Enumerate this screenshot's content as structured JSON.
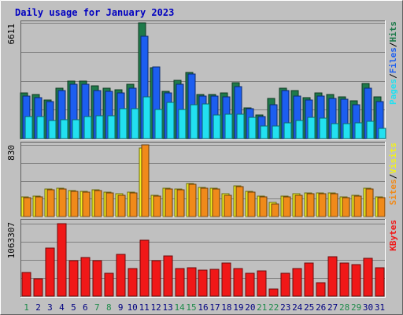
{
  "chart_data": {
    "type": "bar",
    "title": "Daily usage for January 2023",
    "x": [
      "1",
      "2",
      "3",
      "4",
      "5",
      "6",
      "7",
      "8",
      "9",
      "10",
      "11",
      "12",
      "13",
      "14",
      "15",
      "16",
      "17",
      "18",
      "19",
      "20",
      "21",
      "22",
      "23",
      "24",
      "25",
      "26",
      "27",
      "28",
      "29",
      "30",
      "31"
    ],
    "weekend_days": [
      "1",
      "7",
      "8",
      "14",
      "15",
      "21",
      "22",
      "28",
      "29"
    ],
    "panels": [
      {
        "name": "top",
        "ymax_label": "6611",
        "ymax": 6611,
        "axis_labels": [
          "Pages",
          "/",
          "Files",
          "/",
          "Hits"
        ],
        "series": [
          {
            "name": "Hits",
            "color": "#1e7a4a",
            "values": [
              2600,
              2500,
              2200,
              2900,
              3300,
              3300,
              3000,
              2900,
              2800,
              3100,
              6611,
              4050,
              2700,
              3350,
              3800,
              2500,
              2500,
              2600,
              3200,
              1750,
              1350,
              2300,
              2900,
              2750,
              2350,
              2600,
              2500,
              2400,
              2150,
              3150,
              2400
            ]
          },
          {
            "name": "Files",
            "color": "#1c5ef0",
            "values": [
              2450,
              2350,
              2100,
              2750,
              3100,
              3100,
              2750,
              2700,
              2600,
              2900,
              5850,
              4100,
              2600,
              3100,
              3700,
              2450,
              2450,
              2400,
              2950,
              1700,
              1250,
              1950,
              2750,
              2450,
              2200,
              2450,
              2300,
              2250,
              1950,
              2900,
              2100
            ]
          },
          {
            "name": "Pages",
            "color": "#22e0f0",
            "values": [
              1250,
              1250,
              1050,
              1100,
              1100,
              1250,
              1300,
              1300,
              1700,
              1700,
              2400,
              1650,
              2050,
              1650,
              1950,
              2000,
              1350,
              1400,
              1400,
              1200,
              700,
              700,
              900,
              1050,
              1200,
              1150,
              850,
              850,
              900,
              1000,
              600
            ]
          }
        ]
      },
      {
        "name": "middle",
        "ymax_label": "830",
        "ymax": 830,
        "axis_labels": [
          "Sites",
          "/",
          "Visits"
        ],
        "series": [
          {
            "name": "Visits",
            "color": "#f0f020",
            "values": [
              230,
              240,
              320,
              330,
              300,
              290,
              310,
              280,
              260,
              280,
              790,
              250,
              330,
              320,
              380,
              340,
              330,
              260,
              360,
              290,
              240,
              160,
              240,
              260,
              270,
              270,
              270,
              230,
              250,
              330,
              230
            ]
          },
          {
            "name": "Sites",
            "color": "#f08a1a",
            "values": [
              220,
              230,
              310,
              320,
              290,
              280,
              300,
              270,
              250,
              270,
              830,
              240,
              320,
              310,
              370,
              330,
              320,
              250,
              350,
              280,
              230,
              150,
              230,
              250,
              260,
              260,
              260,
              220,
              240,
              320,
              220
            ]
          }
        ]
      },
      {
        "name": "bottom",
        "ymax_label": "1063307",
        "ymax": 1063307,
        "axis_labels": [
          "KBytes"
        ],
        "series": [
          {
            "name": "KBytes",
            "color": "#f01818",
            "values": [
              350000,
              250000,
              700000,
              1063307,
              520000,
              570000,
              520000,
              330000,
              610000,
              400000,
              820000,
              520000,
              590000,
              410000,
              420000,
              380000,
              390000,
              490000,
              410000,
              330000,
              370000,
              100000,
              330000,
              400000,
              480000,
              200000,
              580000,
              490000,
              460000,
              560000,
              420000
            ]
          }
        ]
      }
    ]
  }
}
